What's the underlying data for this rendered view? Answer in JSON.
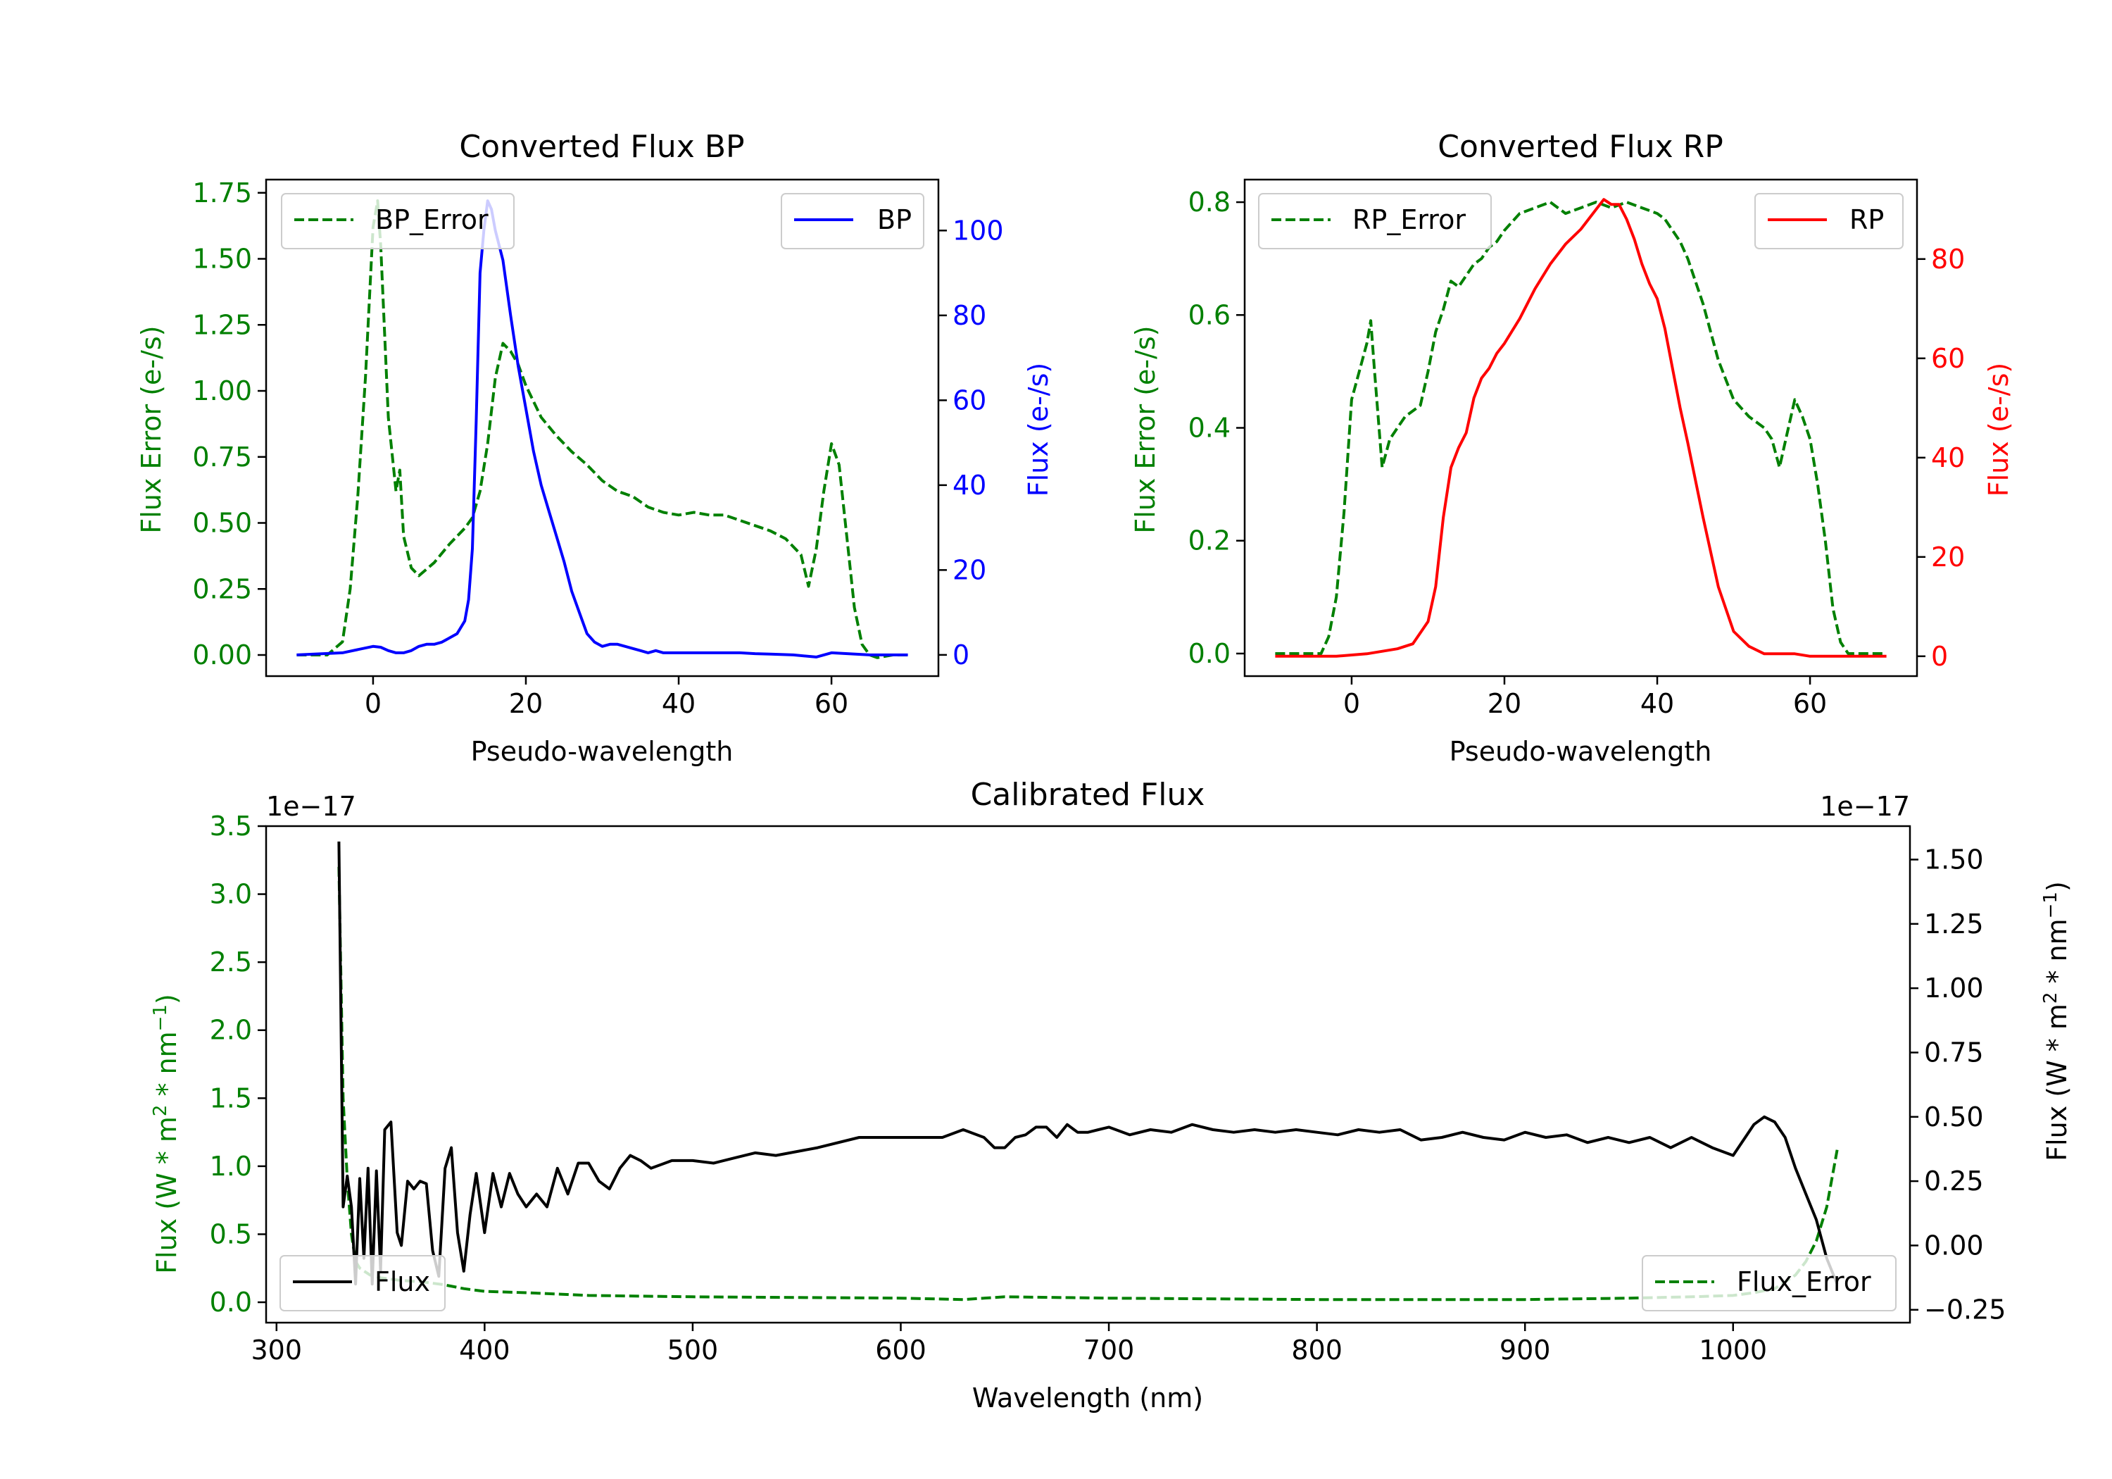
{
  "figure": {
    "background": "#ffffff",
    "colors": {
      "green": "#008000",
      "blue": "#0000ff",
      "red": "#ff0000",
      "black": "#000000"
    }
  },
  "chart_data": [
    {
      "id": "bp",
      "type": "line",
      "title": "Converted Flux BP",
      "xlabel": "Pseudo-wavelength",
      "ylabel_left": "Flux Error (e-/s)",
      "ylabel_right": "Flux (e-/s)",
      "xlim": [
        -14,
        74
      ],
      "ylim_left": [
        -0.08,
        1.8
      ],
      "ylim_right": [
        -5,
        112
      ],
      "xticks": [
        0,
        20,
        40,
        60
      ],
      "yticks_left": [
        "0.00",
        "0.25",
        "0.50",
        "0.75",
        "1.00",
        "1.25",
        "1.50",
        "1.75"
      ],
      "yticks_right": [
        "0",
        "20",
        "40",
        "60",
        "80",
        "100"
      ],
      "legend_left": {
        "label": "BP_Error",
        "position": "upper left"
      },
      "legend_right": {
        "label": "BP",
        "position": "upper right"
      },
      "series": [
        {
          "name": "BP_Error",
          "axis": "left",
          "color": "#008000",
          "style": "dashed",
          "x": [
            -10,
            -6,
            -4,
            -3,
            -2,
            -1,
            0,
            0.6,
            1,
            2,
            3,
            3.5,
            4,
            5,
            6,
            8,
            10,
            12,
            13,
            14,
            15,
            16,
            17,
            18,
            19,
            20,
            22,
            24,
            26,
            28,
            30,
            32,
            34,
            36,
            38,
            40,
            42,
            44,
            46,
            48,
            50,
            52,
            54,
            56,
            57,
            58,
            59,
            60,
            61,
            62,
            63,
            64,
            65,
            66,
            68,
            70
          ],
          "y": [
            0,
            0,
            0.05,
            0.25,
            0.6,
            1.05,
            1.62,
            1.72,
            1.55,
            0.9,
            0.62,
            0.7,
            0.45,
            0.33,
            0.3,
            0.35,
            0.42,
            0.48,
            0.52,
            0.62,
            0.8,
            1.05,
            1.18,
            1.15,
            1.1,
            1.02,
            0.9,
            0.83,
            0.77,
            0.72,
            0.66,
            0.62,
            0.6,
            0.56,
            0.54,
            0.53,
            0.54,
            0.53,
            0.53,
            0.51,
            0.49,
            0.47,
            0.44,
            0.38,
            0.26,
            0.4,
            0.62,
            0.8,
            0.72,
            0.45,
            0.18,
            0.04,
            0,
            -0.01,
            0,
            0
          ]
        },
        {
          "name": "BP",
          "axis": "right",
          "color": "#0000ff",
          "style": "solid",
          "x": [
            -10,
            -4,
            0,
            1,
            2,
            3,
            4,
            5,
            6,
            7,
            8,
            9,
            10,
            11,
            12,
            12.5,
            13,
            13.5,
            14,
            14.5,
            15,
            15.5,
            16,
            17,
            18,
            19,
            20,
            21,
            22,
            23,
            24,
            25,
            26,
            27,
            28,
            29,
            30,
            31,
            32,
            33,
            34,
            35,
            36,
            37,
            38,
            39,
            40,
            41,
            42,
            43,
            44,
            45,
            46,
            47,
            48,
            50,
            52,
            55,
            58,
            60,
            65,
            70
          ],
          "y": [
            0,
            0.5,
            2,
            1.8,
            1,
            0.5,
            0.5,
            1,
            2,
            2.5,
            2.5,
            3,
            4,
            5,
            8,
            13,
            25,
            55,
            90,
            100,
            107,
            105,
            100,
            93,
            80,
            68,
            58,
            48,
            40,
            34,
            28,
            22,
            15,
            10,
            5,
            3,
            2,
            2.5,
            2.5,
            2,
            1.5,
            1,
            0.5,
            1,
            0.5,
            0.5,
            0.5,
            0.5,
            0.5,
            0.5,
            0.5,
            0.5,
            0.5,
            0.5,
            0.5,
            0.3,
            0.2,
            0,
            -0.5,
            0.5,
            0,
            0
          ]
        }
      ]
    },
    {
      "id": "rp",
      "type": "line",
      "title": "Converted Flux RP",
      "xlabel": "Pseudo-wavelength",
      "ylabel_left": "Flux Error (e-/s)",
      "ylabel_right": "Flux (e-/s)",
      "xlim": [
        -14,
        74
      ],
      "ylim_left": [
        -0.04,
        0.84
      ],
      "ylim_right": [
        -4,
        96
      ],
      "xticks": [
        0,
        20,
        40,
        60
      ],
      "yticks_left": [
        "0.0",
        "0.2",
        "0.4",
        "0.6",
        "0.8"
      ],
      "yticks_right": [
        "0",
        "20",
        "40",
        "60",
        "80"
      ],
      "legend_left": {
        "label": "RP_Error",
        "position": "upper left"
      },
      "legend_right": {
        "label": "RP",
        "position": "upper right"
      },
      "series": [
        {
          "name": "RP_Error",
          "axis": "left",
          "color": "#008000",
          "style": "dashed",
          "x": [
            -10,
            -4,
            -3,
            -2,
            -1,
            0,
            1,
            2,
            2.5,
            3,
            4,
            5,
            6,
            7,
            8,
            9,
            10,
            11,
            12,
            13,
            14,
            15,
            16,
            17,
            18,
            19,
            20,
            22,
            24,
            26,
            28,
            30,
            32,
            34,
            36,
            38,
            40,
            41,
            42,
            43,
            44,
            46,
            48,
            50,
            52,
            54,
            55,
            56,
            57,
            58,
            59,
            60,
            61,
            62,
            63,
            64,
            65,
            66,
            68,
            70
          ],
          "y": [
            0,
            0,
            0.03,
            0.1,
            0.25,
            0.45,
            0.5,
            0.55,
            0.59,
            0.5,
            0.33,
            0.38,
            0.4,
            0.42,
            0.43,
            0.44,
            0.5,
            0.57,
            0.61,
            0.66,
            0.65,
            0.67,
            0.69,
            0.7,
            0.72,
            0.73,
            0.75,
            0.78,
            0.79,
            0.8,
            0.78,
            0.79,
            0.8,
            0.79,
            0.8,
            0.79,
            0.78,
            0.77,
            0.75,
            0.73,
            0.7,
            0.62,
            0.52,
            0.45,
            0.42,
            0.4,
            0.38,
            0.33,
            0.39,
            0.45,
            0.42,
            0.38,
            0.3,
            0.2,
            0.08,
            0.02,
            0,
            0,
            0,
            0
          ]
        },
        {
          "name": "RP",
          "axis": "right",
          "color": "#ff0000",
          "style": "solid",
          "x": [
            -10,
            -2,
            2,
            6,
            8,
            10,
            11,
            12,
            13,
            14,
            15,
            16,
            17,
            18,
            19,
            20,
            22,
            24,
            26,
            28,
            30,
            32,
            33,
            34,
            35,
            36,
            37,
            38,
            39,
            40,
            41,
            42,
            43,
            44,
            46,
            48,
            50,
            52,
            54,
            56,
            58,
            60,
            62,
            66,
            70
          ],
          "y": [
            0,
            0,
            0.5,
            1.5,
            2.5,
            7,
            14,
            28,
            38,
            42,
            45,
            52,
            56,
            58,
            61,
            63,
            68,
            74,
            79,
            83,
            86,
            90,
            92,
            91,
            91,
            88,
            84,
            79,
            75,
            72,
            66,
            58,
            50,
            43,
            28,
            14,
            5,
            2,
            0.5,
            0.5,
            0.5,
            0,
            0,
            0,
            0
          ]
        }
      ]
    },
    {
      "id": "calibrated",
      "type": "line",
      "title": "Calibrated Flux",
      "xlabel": "Wavelength (nm)",
      "ylabel_left": "Flux (W * m<sup>2</sup> * nm<sup>−1</sup>)",
      "ylabel_right": "Flux (W * m<sup>2</sup> * nm<sup>−1</sup>)",
      "ylabel_left_text": "Flux (W * m² * nm⁻¹)",
      "ylabel_right_text": "Flux (W * m² * nm⁻¹)",
      "offset_left": "1e−17",
      "offset_right": "1e−17",
      "xlim": [
        295,
        1085
      ],
      "ylim_left": [
        -0.15,
        3.5
      ],
      "ylim_right": [
        -0.3,
        1.63
      ],
      "xticks": [
        300,
        400,
        500,
        600,
        700,
        800,
        900,
        1000
      ],
      "yticks_left": [
        "0.0",
        "0.5",
        "1.0",
        "1.5",
        "2.0",
        "2.5",
        "3.0",
        "3.5"
      ],
      "yticks_right": [
        "−0.25",
        "0.00",
        "0.25",
        "0.50",
        "0.75",
        "1.00",
        "1.25",
        "1.50"
      ],
      "legend_left": {
        "label": "Flux",
        "position": "lower left"
      },
      "legend_right": {
        "label": "Flux_Error",
        "position": "lower right"
      },
      "series": [
        {
          "name": "Flux_Error",
          "axis": "left",
          "color": "#008000",
          "style": "dashed",
          "x": [
            330,
            332,
            334,
            336,
            338,
            340,
            345,
            350,
            355,
            360,
            370,
            380,
            390,
            400,
            420,
            450,
            500,
            600,
            630,
            650,
            700,
            800,
            900,
            950,
            980,
            1000,
            1010,
            1020,
            1030,
            1035,
            1040,
            1045,
            1050
          ],
          "y": [
            3.2,
            1.5,
            0.9,
            0.5,
            0.3,
            0.25,
            0.2,
            0.18,
            0.17,
            0.16,
            0.15,
            0.13,
            0.1,
            0.08,
            0.07,
            0.05,
            0.04,
            0.03,
            0.02,
            0.04,
            0.03,
            0.02,
            0.02,
            0.03,
            0.04,
            0.05,
            0.07,
            0.1,
            0.2,
            0.3,
            0.45,
            0.7,
            1.12
          ]
        },
        {
          "name": "Flux",
          "axis": "right",
          "color": "#000000",
          "style": "solid",
          "x": [
            330,
            332,
            334,
            336,
            338,
            340,
            342,
            344,
            346,
            348,
            350,
            352,
            355,
            358,
            360,
            363,
            366,
            369,
            372,
            375,
            378,
            381,
            384,
            387,
            390,
            393,
            396,
            400,
            404,
            408,
            412,
            416,
            420,
            425,
            430,
            435,
            440,
            445,
            450,
            455,
            460,
            465,
            470,
            475,
            480,
            490,
            500,
            510,
            520,
            530,
            540,
            560,
            580,
            600,
            620,
            630,
            640,
            645,
            650,
            655,
            660,
            665,
            670,
            675,
            680,
            685,
            690,
            695,
            700,
            710,
            720,
            730,
            740,
            750,
            760,
            770,
            780,
            790,
            800,
            810,
            820,
            830,
            840,
            850,
            860,
            870,
            880,
            890,
            900,
            910,
            920,
            930,
            940,
            950,
            960,
            970,
            980,
            990,
            1000,
            1010,
            1015,
            1020,
            1025,
            1030,
            1035,
            1040,
            1045,
            1050
          ],
          "y": [
            1.57,
            0.15,
            0.27,
            0.15,
            -0.15,
            0.26,
            -0.05,
            0.3,
            -0.15,
            0.29,
            -0.1,
            0.45,
            0.48,
            0.05,
            0,
            0.25,
            0.22,
            0.25,
            0.24,
            -0.02,
            -0.12,
            0.3,
            0.38,
            0.05,
            -0.1,
            0.12,
            0.28,
            0.05,
            0.28,
            0.15,
            0.28,
            0.2,
            0.15,
            0.2,
            0.15,
            0.3,
            0.2,
            0.32,
            0.32,
            0.25,
            0.22,
            0.3,
            0.35,
            0.33,
            0.3,
            0.33,
            0.33,
            0.32,
            0.34,
            0.36,
            0.35,
            0.38,
            0.42,
            0.42,
            0.42,
            0.45,
            0.42,
            0.38,
            0.38,
            0.42,
            0.43,
            0.46,
            0.46,
            0.42,
            0.47,
            0.44,
            0.44,
            0.45,
            0.46,
            0.43,
            0.45,
            0.44,
            0.47,
            0.45,
            0.44,
            0.45,
            0.44,
            0.45,
            0.44,
            0.43,
            0.45,
            0.44,
            0.45,
            0.41,
            0.42,
            0.44,
            0.42,
            0.41,
            0.44,
            0.42,
            0.43,
            0.4,
            0.42,
            0.4,
            0.42,
            0.38,
            0.42,
            0.38,
            0.35,
            0.47,
            0.5,
            0.48,
            0.42,
            0.3,
            0.2,
            0.1,
            -0.05,
            -0.15
          ]
        }
      ]
    }
  ]
}
